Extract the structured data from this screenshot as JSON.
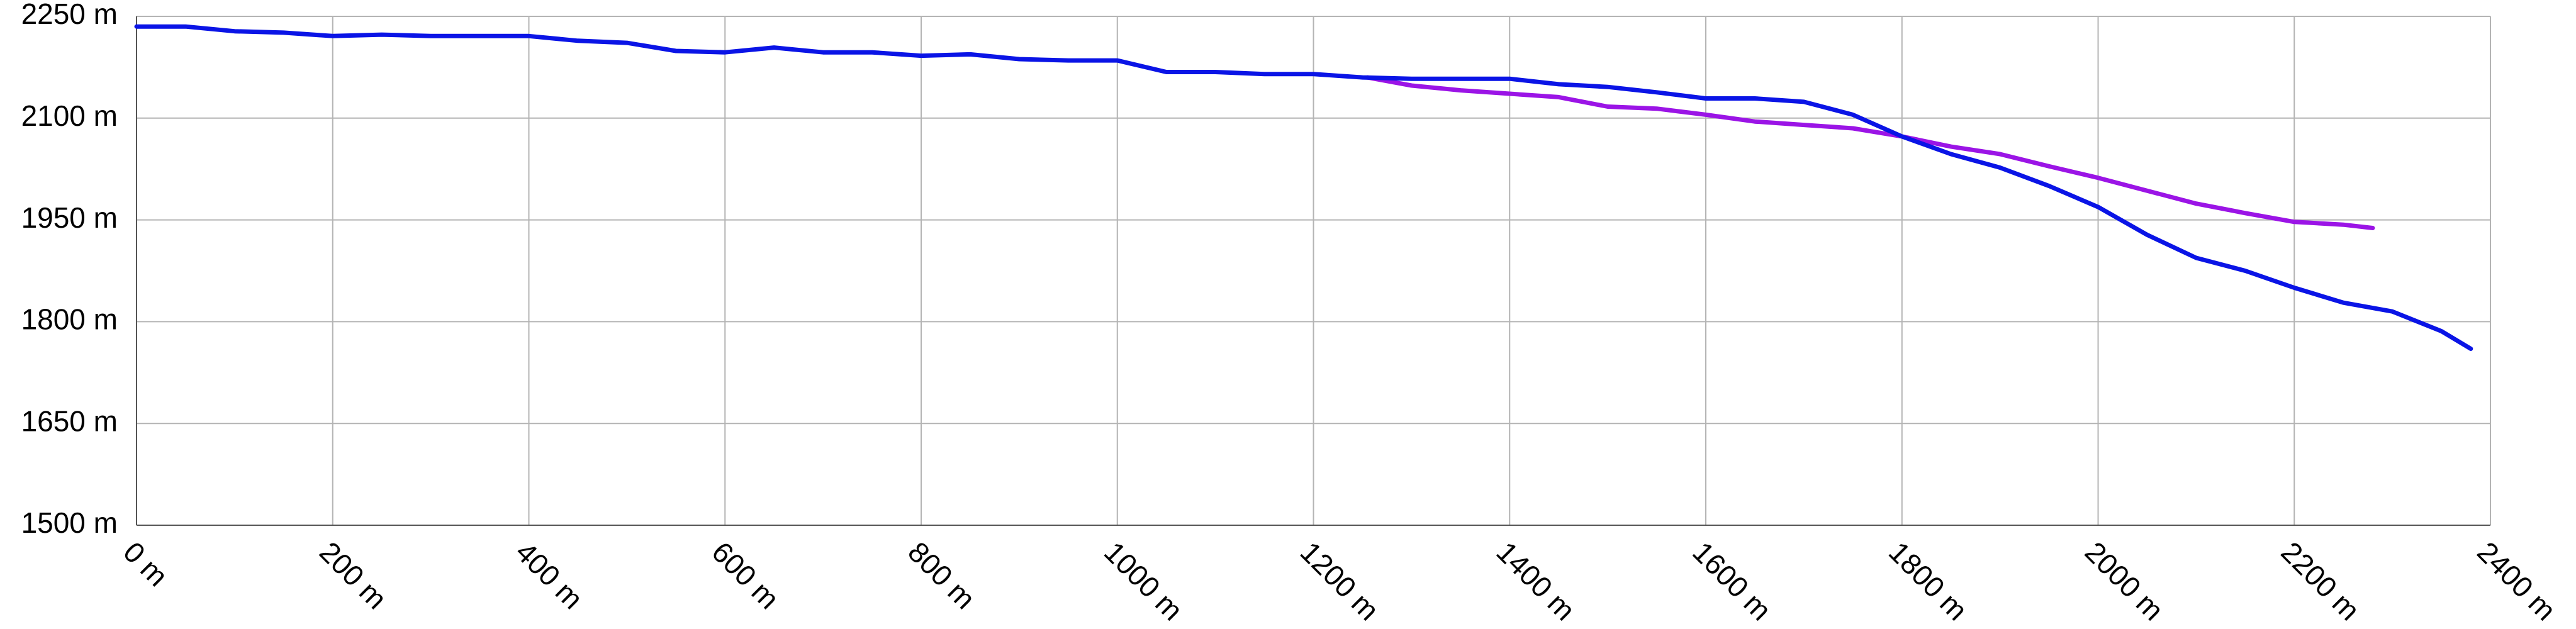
{
  "chart_data": {
    "type": "line",
    "xlim": [
      0,
      2400
    ],
    "xticks": [
      {
        "value": 0,
        "label": "0 m"
      },
      {
        "value": 200,
        "label": "200 m"
      },
      {
        "value": 400,
        "label": "400 m"
      },
      {
        "value": 600,
        "label": "600 m"
      },
      {
        "value": 800,
        "label": "800 m"
      },
      {
        "value": 1000,
        "label": "1000 m"
      },
      {
        "value": 1200,
        "label": "1200 m"
      },
      {
        "value": 1400,
        "label": "1400 m"
      },
      {
        "value": 1600,
        "label": "1600 m"
      },
      {
        "value": 1800,
        "label": "1800 m"
      },
      {
        "value": 2000,
        "label": "2000 m"
      },
      {
        "value": 2200,
        "label": "2200 m"
      },
      {
        "value": 2400,
        "label": "2400 m"
      }
    ],
    "ylim": [
      1500,
      2250
    ],
    "yticks": [
      {
        "value": 1500,
        "label": "1500 m"
      },
      {
        "value": 1650,
        "label": "1650 m"
      },
      {
        "value": 1800,
        "label": "1800 m"
      },
      {
        "value": 1950,
        "label": "1950 m"
      },
      {
        "value": 2100,
        "label": "2100 m"
      },
      {
        "value": 2250,
        "label": "2250 m"
      }
    ],
    "grid": true,
    "series": [
      {
        "color": "#0a14e6",
        "x": [
          0,
          50,
          100,
          150,
          200,
          250,
          300,
          350,
          400,
          450,
          500,
          550,
          600,
          650,
          700,
          750,
          800,
          850,
          900,
          950,
          1000,
          1050,
          1100,
          1150,
          1200,
          1250,
          1300,
          1350,
          1400,
          1450,
          1500,
          1550,
          1600,
          1650,
          1700,
          1750,
          1800,
          1850,
          1900,
          1950,
          2000,
          2050,
          2100,
          2150,
          2200,
          2250,
          2300,
          2350,
          2380
        ],
        "values": [
          2235,
          2235,
          2228,
          2226,
          2221,
          2223,
          2221,
          2221,
          2221,
          2214,
          2211,
          2199,
          2197,
          2204,
          2197,
          2197,
          2192,
          2194,
          2187,
          2185,
          2185,
          2168,
          2168,
          2165,
          2165,
          2160,
          2158,
          2158,
          2158,
          2150,
          2146,
          2138,
          2129,
          2129,
          2124,
          2105,
          2073,
          2047,
          2027,
          2000,
          1969,
          1928,
          1894,
          1875,
          1850,
          1828,
          1815,
          1786,
          1760
        ]
      },
      {
        "color": "#9b14e6",
        "x": [
          1255,
          1300,
          1350,
          1400,
          1450,
          1500,
          1550,
          1600,
          1650,
          1700,
          1750,
          1800,
          1850,
          1900,
          1950,
          2000,
          2050,
          2100,
          2150,
          2200,
          2250,
          2280
        ],
        "values": [
          2160,
          2148,
          2141,
          2136,
          2131,
          2117,
          2114,
          2105,
          2095,
          2090,
          2085,
          2073,
          2058,
          2047,
          2029,
          2012,
          1993,
          1974,
          1960,
          1947,
          1943,
          1938
        ]
      }
    ]
  }
}
